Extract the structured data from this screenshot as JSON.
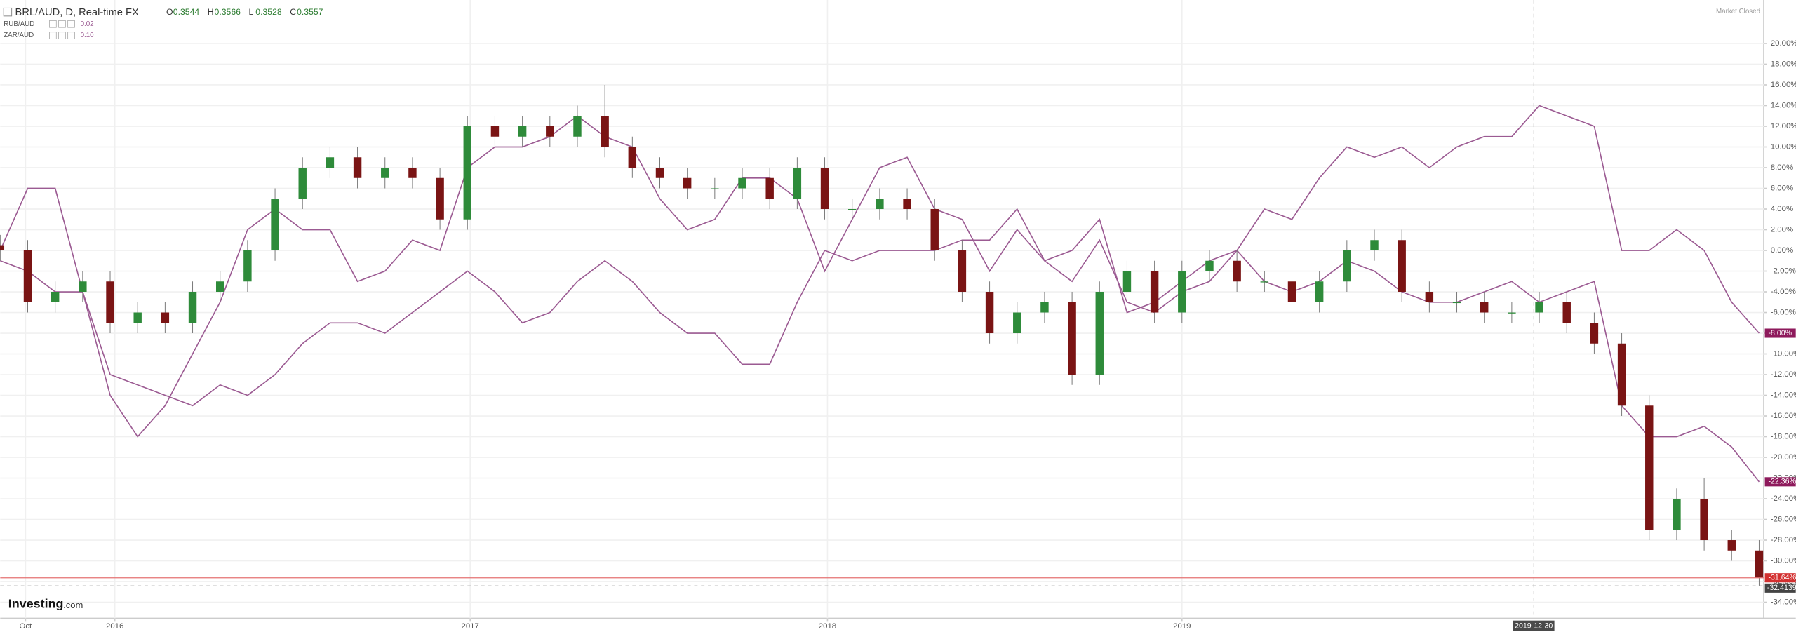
{
  "chart_data": {
    "type": "candlestick",
    "title": "BRL/AUD, D, Real-time FX",
    "ohlc_header": [
      {
        "label": "O",
        "value": "0.3544"
      },
      {
        "label": "H",
        "value": "0.3566"
      },
      {
        "label": "L",
        "value": "0.3528"
      },
      {
        "label": "C",
        "value": "0.3557"
      }
    ],
    "status": "Market Closed",
    "logo": {
      "main": "Investing",
      "suffix": ".com"
    },
    "up_color": "#2e8b3a",
    "down_color": "#7a1414",
    "candles": {
      "open": [
        0.5,
        0,
        -5,
        -4,
        -3,
        -7,
        -6,
        -7,
        -4,
        -3,
        0,
        5,
        8,
        9,
        7,
        8,
        7,
        3,
        12,
        11,
        12,
        11,
        13,
        10,
        8,
        7,
        6,
        6,
        7,
        5,
        8,
        4,
        4,
        5,
        4,
        0,
        -4,
        -8,
        -6,
        -5,
        -12,
        -4,
        -2,
        -6,
        -2,
        -1,
        -3,
        -3,
        -5,
        -3,
        0,
        1,
        -4,
        -5,
        -5,
        -6,
        -6,
        -5,
        -7,
        -9,
        -15,
        -27,
        -24,
        -28,
        -29
      ],
      "high": [
        1.5,
        1,
        -3,
        -2,
        -2,
        -5,
        -5,
        -3,
        -2,
        1,
        6,
        9,
        10,
        10,
        9,
        9,
        8,
        13,
        13,
        13,
        13,
        14,
        16,
        11,
        9,
        8,
        7,
        8,
        8,
        9,
        9,
        5,
        6,
        6,
        5,
        1,
        -3,
        -5,
        -4,
        -4,
        -3,
        -1,
        -1,
        -1,
        0,
        0,
        -2,
        -2,
        -2,
        1,
        2,
        2,
        -3,
        -4,
        -4,
        -5,
        -4,
        -4,
        -6,
        -8,
        -14,
        -23,
        -22,
        -27,
        -28
      ],
      "low": [
        -1,
        -6,
        -6,
        -5,
        -8,
        -8,
        -8,
        -8,
        -5,
        -4,
        -1,
        4,
        7,
        6,
        6,
        6,
        2,
        2,
        10,
        10,
        10,
        10,
        9,
        7,
        6,
        5,
        5,
        5,
        4,
        4,
        3,
        3,
        3,
        3,
        -1,
        -5,
        -9,
        -9,
        -7,
        -13,
        -13,
        -5,
        -7,
        -7,
        -3,
        -4,
        -4,
        -6,
        -6,
        -4,
        -1,
        -5,
        -6,
        -6,
        -7,
        -7,
        -7,
        -8,
        -10,
        -16,
        -28,
        -28,
        -29,
        -30,
        -32.41
      ],
      "close": [
        0,
        -5,
        -4,
        -3,
        -7,
        -6,
        -7,
        -4,
        -3,
        0,
        5,
        8,
        9,
        7,
        8,
        7,
        3,
        12,
        11,
        12,
        11,
        13,
        10,
        8,
        7,
        6,
        6,
        7,
        5,
        8,
        4,
        4,
        5,
        4,
        0,
        -4,
        -8,
        -6,
        -5,
        -12,
        -4,
        -2,
        -6,
        -2,
        -1,
        -3,
        -3,
        -5,
        -3,
        0,
        1,
        -4,
        -5,
        -5,
        -6,
        -6,
        -5,
        -7,
        -9,
        -15,
        -27,
        -24,
        -28,
        -29,
        -31.64
      ],
      "last_label": "-31.64%",
      "low_label": "-32.4139"
    },
    "series": [
      {
        "name": "RUB/AUD",
        "value_label": "0.02",
        "color": "#9b5a92",
        "last_label": "-8.00%",
        "values": [
          -1,
          -2,
          -4,
          -4,
          -12,
          -13,
          -14,
          -15,
          -13,
          -14,
          -12,
          -9,
          -7,
          -7,
          -8,
          -6,
          -4,
          -2,
          -4,
          -7,
          -6,
          -3,
          -1,
          -3,
          -6,
          -8,
          -8,
          -11,
          -11,
          -5,
          0,
          -1,
          0,
          0,
          0,
          1,
          1,
          4,
          -1,
          -3,
          1,
          -5,
          -6,
          -4,
          -3,
          0,
          4,
          3,
          7,
          10,
          9,
          10,
          8,
          10,
          11,
          11,
          14,
          13,
          12,
          0,
          0,
          2,
          0,
          -5,
          -8
        ]
      },
      {
        "name": "ZAR/AUD",
        "value_label": "0.10",
        "color": "#9b5a92",
        "last_label": "-22.36%",
        "values": [
          0,
          6,
          6,
          -4,
          -14,
          -18,
          -15,
          -10,
          -5,
          2,
          4,
          2,
          2,
          -3,
          -2,
          1,
          0,
          8,
          10,
          10,
          11,
          13,
          11,
          10,
          5,
          2,
          3,
          7,
          7,
          5,
          -2,
          3,
          8,
          9,
          4,
          3,
          -2,
          2,
          -1,
          0,
          3,
          -6,
          -5,
          -3,
          -1,
          0,
          -3,
          -4,
          -3,
          -1,
          -2,
          -4,
          -5,
          -5,
          -4,
          -3,
          -5,
          -4,
          -3,
          -15,
          -18,
          -18,
          -17,
          -19,
          -22.36
        ]
      }
    ],
    "xlim": [
      0,
      64
    ],
    "xticks": [
      {
        "value": 0.92,
        "label": "Oct"
      },
      {
        "value": 4.17,
        "label": "2016"
      },
      {
        "value": 17.1,
        "label": "2017"
      },
      {
        "value": 30.1,
        "label": "2018"
      },
      {
        "value": 43,
        "label": "2019"
      }
    ],
    "crosshair_x": {
      "value": 55.8,
      "label": "2019-12-30"
    },
    "ylim": [
      -35.33,
      23.76
    ],
    "yticks": [
      {
        "value": -34,
        "label": "-34.00%"
      },
      {
        "value": -32,
        "label": "-32.00%"
      },
      {
        "value": -30,
        "label": "-30.00%"
      },
      {
        "value": -28,
        "label": "-28.00%"
      },
      {
        "value": -26,
        "label": "-26.00%"
      },
      {
        "value": -24,
        "label": "-24.00%"
      },
      {
        "value": -22,
        "label": "-22.00%"
      },
      {
        "value": -20,
        "label": "-20.00%"
      },
      {
        "value": -18,
        "label": "-18.00%"
      },
      {
        "value": -16,
        "label": "-16.00%"
      },
      {
        "value": -14,
        "label": "-14.00%"
      },
      {
        "value": -12,
        "label": "-12.00%"
      },
      {
        "value": -10,
        "label": "-10.00%"
      },
      {
        "value": -8,
        "label": "-8.00%"
      },
      {
        "value": -6,
        "label": "-6.00%"
      },
      {
        "value": -4,
        "label": "-4.00%"
      },
      {
        "value": -2,
        "label": "-2.00%"
      },
      {
        "value": 0,
        "label": "0.00%"
      },
      {
        "value": 2,
        "label": "2.00%"
      },
      {
        "value": 4,
        "label": "4.00%"
      },
      {
        "value": 6,
        "label": "6.00%"
      },
      {
        "value": 8,
        "label": "8.00%"
      },
      {
        "value": 10,
        "label": "10.00%"
      },
      {
        "value": 12,
        "label": "12.00%"
      },
      {
        "value": 14,
        "label": "14.00%"
      },
      {
        "value": 16,
        "label": "16.00%"
      },
      {
        "value": 18,
        "label": "18.00%"
      },
      {
        "value": 20,
        "label": "20.00%"
      }
    ],
    "grid": true
  }
}
